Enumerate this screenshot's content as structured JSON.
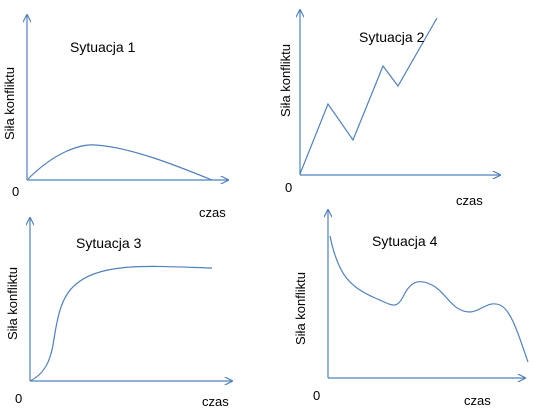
{
  "panels": [
    {
      "title": "Sytuacja 1",
      "ylabel": "Siła konfliktu",
      "zero": "0",
      "xlabel": "czas"
    },
    {
      "title": "Sytuacja 2",
      "ylabel": "Siła konfliktu",
      "zero": "0",
      "xlabel": "czas"
    },
    {
      "title": "Sytuacja 3",
      "ylabel": "Siła konfliktu",
      "zero": "0",
      "xlabel": "czas"
    },
    {
      "title": "Sytuacja 4",
      "ylabel": "Siła konfliktu",
      "zero": "0",
      "xlabel": "czas"
    }
  ],
  "colors": {
    "line": "#4f81bd",
    "text": "#000000"
  }
}
